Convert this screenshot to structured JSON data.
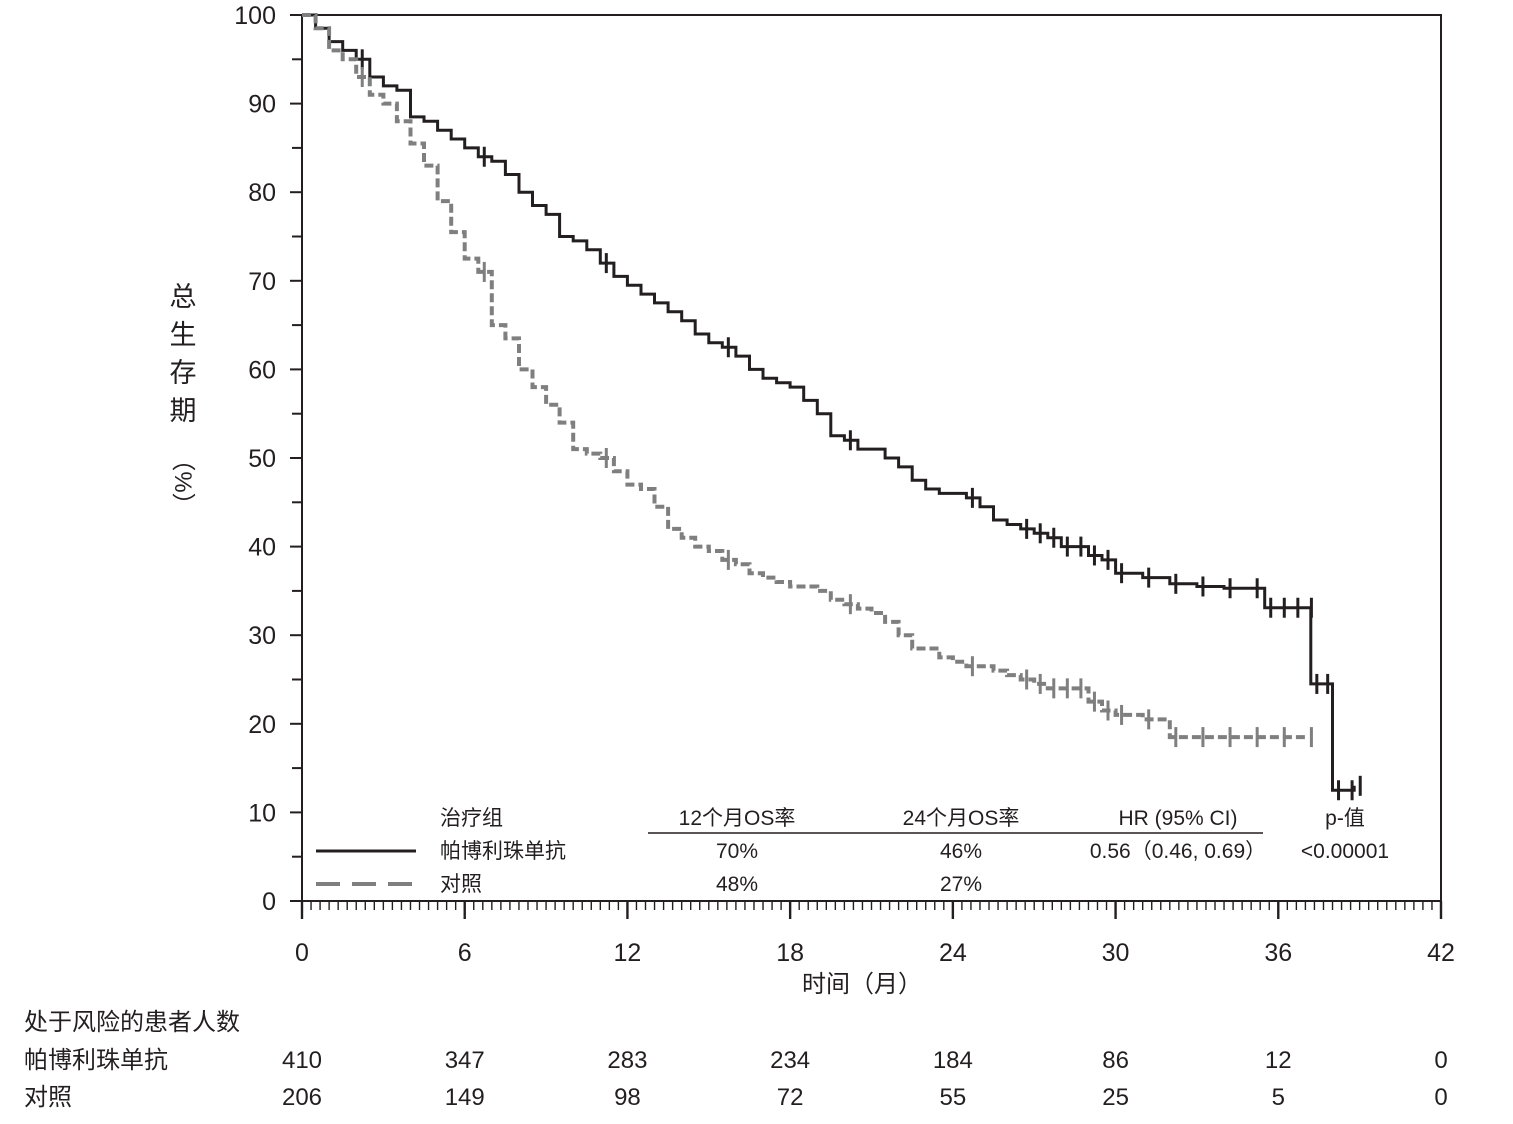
{
  "chart_data": {
    "type": "line",
    "chart_kind": "kaplan-meier survival curve",
    "ylabel": "总生存期（%）",
    "ylabel_chars": [
      "总",
      "生",
      "存",
      "期"
    ],
    "ylabel_unit": "（%）",
    "xlabel": "时间（月）",
    "xlim": [
      0,
      42
    ],
    "ylim": [
      0,
      100
    ],
    "x_ticks": [
      0,
      6,
      12,
      18,
      24,
      30,
      36,
      42
    ],
    "x_tick_labels": [
      "0",
      "6",
      "12",
      "18",
      "24",
      "30",
      "36",
      "42"
    ],
    "y_ticks": [
      0,
      10,
      20,
      30,
      40,
      50,
      60,
      70,
      80,
      90,
      100
    ],
    "y_tick_labels": [
      "0",
      "10",
      "20",
      "30",
      "40",
      "50",
      "60",
      "70",
      "80",
      "90",
      "100"
    ],
    "legend": {
      "headers": {
        "group": "治疗组",
        "os12": "12个月OS率",
        "os24": "24个月OS率",
        "hr": "HR (95% CI)",
        "p": "p-值"
      },
      "rows": [
        {
          "name": "帕博利珠单抗",
          "os12": "70%",
          "os24": "46%",
          "hr": "0.56（0.46, 0.69）",
          "p": "<0.00001"
        },
        {
          "name": "对照",
          "os12": "48%",
          "os24": "27%",
          "hr": "",
          "p": ""
        }
      ]
    },
    "series": [
      {
        "name": "帕博利珠单抗",
        "color": "#231f20",
        "line_style": "solid",
        "x": [
          0,
          0.5,
          1,
          1.5,
          2,
          2.5,
          3,
          3.5,
          4,
          4.5,
          5,
          5.5,
          6,
          6.5,
          7,
          7.5,
          8,
          8.5,
          9,
          9.5,
          10,
          10.5,
          11,
          11.5,
          12,
          12.5,
          13,
          13.5,
          14,
          14.5,
          15,
          15.5,
          16,
          16.5,
          17,
          17.5,
          18,
          18.5,
          19,
          19.5,
          20,
          20.5,
          21,
          21.5,
          22,
          22.5,
          23,
          23.5,
          24,
          24.5,
          25,
          25.5,
          26,
          26.5,
          27,
          27.5,
          28,
          28.5,
          29,
          29.5,
          30,
          31,
          32,
          33,
          34,
          35,
          35.5,
          36,
          36.5,
          37,
          37.2,
          37.6,
          38,
          38.5,
          38.8
        ],
        "y": [
          100,
          98.5,
          97,
          96,
          95,
          93,
          92,
          91.5,
          88.5,
          88,
          87,
          86,
          85,
          84,
          83.5,
          82,
          80,
          78.5,
          77.5,
          75,
          74.5,
          73.5,
          72,
          70.5,
          69.5,
          68.5,
          67.5,
          66.5,
          65.5,
          64,
          63,
          62.5,
          61.5,
          60,
          59,
          58.5,
          58,
          56.5,
          55,
          52.5,
          52,
          51,
          51,
          50,
          49,
          47.5,
          46.5,
          46,
          46,
          45.5,
          44.5,
          43,
          42.5,
          42,
          41.5,
          41,
          40,
          40,
          39,
          38.5,
          37,
          36.5,
          35.8,
          35.5,
          35.3,
          35.3,
          33.1,
          33.1,
          33.1,
          33.1,
          24.5,
          24.5,
          12.5,
          12.5,
          13
        ]
      },
      {
        "name": "对照",
        "color": "#7f7f80",
        "line_style": "dashed",
        "x": [
          0,
          0.5,
          1,
          1.5,
          2,
          2.5,
          3,
          3.5,
          4,
          4.5,
          5,
          5.5,
          6,
          6.5,
          7,
          7.5,
          8,
          8.5,
          9,
          9.5,
          10,
          10.5,
          11,
          11.5,
          12,
          12.5,
          13,
          13.5,
          14,
          14.5,
          15,
          15.5,
          16,
          16.5,
          17,
          17.5,
          18,
          18.5,
          19,
          19.5,
          20,
          20.5,
          21,
          21.5,
          22,
          22.5,
          23,
          23.5,
          24,
          24.5,
          25,
          25.5,
          26,
          26.5,
          27,
          27.5,
          28,
          28.5,
          29,
          29.5,
          30,
          31,
          32,
          33,
          34,
          35,
          36,
          37
        ],
        "y": [
          100,
          98.5,
          96,
          95,
          93,
          91,
          90,
          88,
          85.5,
          83,
          79,
          75.5,
          72.5,
          71,
          65,
          63.5,
          60,
          58,
          56,
          54,
          51,
          50.5,
          50,
          48.5,
          47,
          46.5,
          44.5,
          42,
          41,
          40,
          39.5,
          38.5,
          38,
          37,
          36.5,
          36,
          35.5,
          35.5,
          35,
          34,
          33.5,
          33,
          32.5,
          31.5,
          30,
          28.5,
          28.5,
          27.5,
          27,
          26.5,
          26.5,
          26,
          25.5,
          25,
          24.5,
          24,
          24,
          24,
          22.5,
          21.5,
          21,
          20.5,
          18.5,
          18.5,
          18.5,
          18.5,
          18.5,
          18.5
        ]
      }
    ],
    "risk_table": {
      "title": "处于风险的患者人数",
      "rows": [
        {
          "name": "帕博利珠单抗",
          "values": [
            "410",
            "347",
            "283",
            "234",
            "184",
            "86",
            "12",
            "0"
          ]
        },
        {
          "name": "对照",
          "values": [
            "206",
            "149",
            "98",
            "72",
            "55",
            "25",
            "5",
            "0"
          ]
        }
      ]
    }
  }
}
